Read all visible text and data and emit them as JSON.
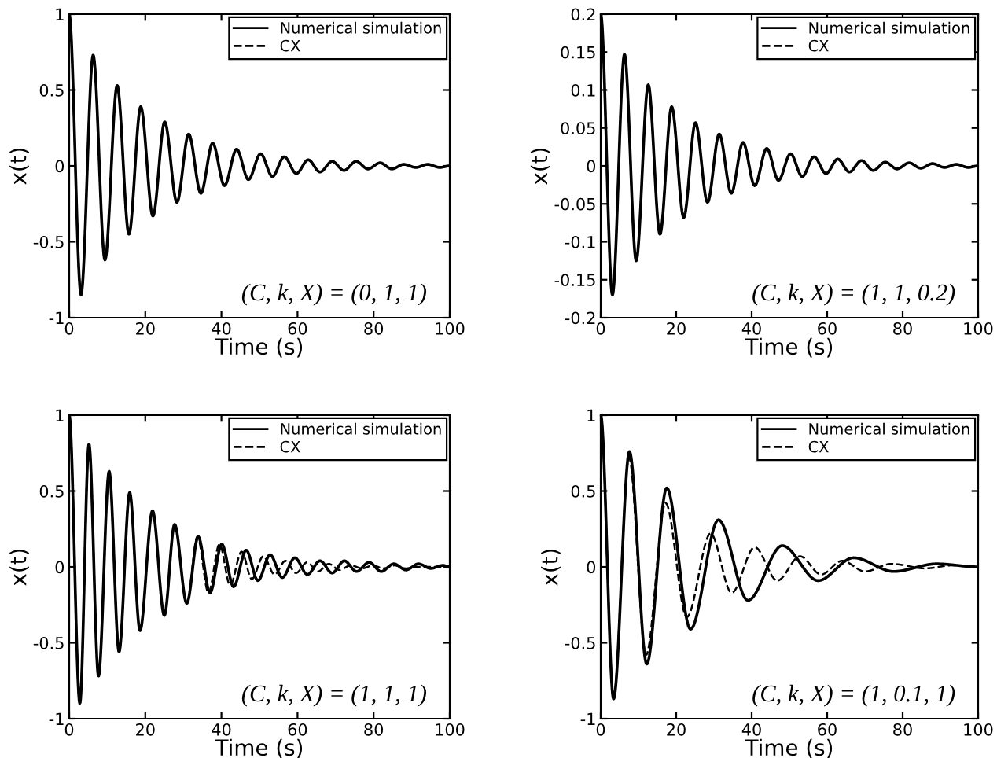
{
  "chart_data": [
    {
      "type": "line",
      "xlabel": "Time (s)",
      "ylabel": "x(t)",
      "xlim": [
        0,
        100
      ],
      "xticks": [
        0,
        20,
        40,
        60,
        80,
        100
      ],
      "ylim": [
        -1,
        1
      ],
      "yticks": [
        -1,
        -0.5,
        0,
        0.5,
        1
      ],
      "legend": "top right",
      "grid": false,
      "annotations": [
        "(C, k, X) = (0, 1, 1)"
      ],
      "series": [
        {
          "name": "Numerical simulation",
          "color": "#000000",
          "line_style": "solid",
          "x": [
            0,
            3.1,
            6.3,
            9.4,
            12.6,
            15.7,
            18.8,
            22,
            25.1,
            28.3,
            31.4,
            34.6,
            37.7,
            40.8,
            44,
            47.1,
            50.3,
            53.4,
            56.5,
            59.7,
            62.8,
            65.9,
            69.1,
            72.2,
            75.4,
            78.5,
            81.7,
            84.8,
            87.9,
            91.1,
            94.2,
            97.4,
            100
          ],
          "values": [
            1,
            -0.85,
            0.73,
            -0.62,
            0.53,
            -0.45,
            0.39,
            -0.33,
            0.29,
            -0.24,
            0.21,
            -0.18,
            0.15,
            -0.13,
            0.11,
            -0.09,
            0.08,
            -0.07,
            0.06,
            -0.05,
            0.04,
            -0.04,
            0.03,
            -0.03,
            0.03,
            -0.02,
            0.02,
            -0.02,
            0.01,
            -0.01,
            0.01,
            -0.01,
            0
          ]
        },
        {
          "name": "CX",
          "color": "#000000",
          "line_style": "dashed",
          "x": [
            0,
            3.1,
            6.3,
            9.4,
            12.6,
            15.7,
            18.8,
            22,
            25.1,
            28.3,
            31.4,
            34.6,
            37.7,
            40.8,
            44,
            47.1,
            50.3,
            53.4,
            56.5,
            59.7,
            62.8,
            65.9,
            69.1,
            72.2,
            75.4,
            78.5,
            81.7,
            84.8,
            87.9,
            91.1,
            94.2,
            97.4,
            100
          ],
          "values": [
            1,
            -0.85,
            0.73,
            -0.62,
            0.53,
            -0.45,
            0.39,
            -0.33,
            0.29,
            -0.24,
            0.21,
            -0.18,
            0.15,
            -0.13,
            0.11,
            -0.09,
            0.08,
            -0.07,
            0.06,
            -0.05,
            0.04,
            -0.04,
            0.03,
            -0.03,
            0.03,
            -0.02,
            0.02,
            -0.02,
            0.01,
            -0.01,
            0.01,
            -0.01,
            0
          ]
        }
      ]
    },
    {
      "type": "line",
      "xlabel": "Time (s)",
      "ylabel": "x(t)",
      "xlim": [
        0,
        100
      ],
      "xticks": [
        0,
        20,
        40,
        60,
        80,
        100
      ],
      "ylim": [
        -0.2,
        0.2
      ],
      "yticks": [
        -0.2,
        -0.15,
        -0.1,
        -0.05,
        0,
        0.05,
        0.1,
        0.15,
        0.2
      ],
      "legend": "top right",
      "grid": false,
      "annotations": [
        "(C, k, X) = (1, 1, 0.2)"
      ],
      "series": [
        {
          "name": "Numerical simulation",
          "color": "#000000",
          "line_style": "solid",
          "x": [
            0,
            3.1,
            6.3,
            9.4,
            12.6,
            15.7,
            18.8,
            22,
            25.1,
            28.3,
            31.4,
            34.6,
            37.7,
            40.8,
            44,
            47.1,
            50.3,
            53.4,
            56.5,
            59.7,
            62.8,
            65.9,
            69.1,
            72.2,
            75.4,
            78.5,
            81.7,
            84.8,
            87.9,
            91.1,
            94.2,
            97.4,
            100
          ],
          "values": [
            0.2,
            -0.17,
            0.147,
            -0.125,
            0.107,
            -0.09,
            0.078,
            -0.068,
            0.057,
            -0.048,
            0.042,
            -0.036,
            0.031,
            -0.026,
            0.023,
            -0.019,
            0.016,
            -0.014,
            0.012,
            -0.01,
            0.009,
            -0.008,
            0.007,
            -0.006,
            0.005,
            -0.004,
            0.004,
            -0.003,
            0.003,
            -0.002,
            0.002,
            -0.002,
            0
          ]
        },
        {
          "name": "CX",
          "color": "#000000",
          "line_style": "dashed",
          "x": [
            0,
            3.1,
            6.3,
            9.4,
            12.6,
            15.7,
            18.8,
            22,
            25.1,
            28.3,
            31.4,
            34.6,
            37.7,
            40.8,
            44,
            47.1,
            50.3,
            53.4,
            56.5,
            59.7,
            62.8,
            65.9,
            69.1,
            72.2,
            75.4,
            78.5,
            81.7,
            84.8,
            87.9,
            91.1,
            94.2,
            97.4,
            100
          ],
          "values": [
            0.2,
            -0.17,
            0.147,
            -0.125,
            0.107,
            -0.09,
            0.078,
            -0.068,
            0.057,
            -0.048,
            0.042,
            -0.036,
            0.031,
            -0.026,
            0.023,
            -0.019,
            0.016,
            -0.014,
            0.012,
            -0.01,
            0.009,
            -0.008,
            0.007,
            -0.006,
            0.005,
            -0.004,
            0.004,
            -0.003,
            0.003,
            -0.002,
            0.002,
            -0.002,
            0
          ]
        }
      ]
    },
    {
      "type": "line",
      "xlabel": "Time (s)",
      "ylabel": "x(t)",
      "xlim": [
        0,
        100
      ],
      "xticks": [
        0,
        20,
        40,
        60,
        80,
        100
      ],
      "ylim": [
        -1,
        1
      ],
      "yticks": [
        -1,
        -0.5,
        0,
        0.5,
        1
      ],
      "legend": "top right",
      "grid": false,
      "annotations": [
        "(C, k, X) = (1, 1, 1)"
      ],
      "series": [
        {
          "name": "Numerical simulation",
          "color": "#000000",
          "line_style": "solid",
          "x": [
            0,
            2.8,
            5.2,
            7.7,
            10.5,
            13.1,
            15.9,
            18.6,
            21.9,
            25,
            27.7,
            30.9,
            33.9,
            37,
            40.1,
            43.2,
            46.5,
            49.6,
            52.8,
            56,
            59.3,
            62.6,
            65.9,
            69.1,
            72.3,
            75.5,
            78.8,
            82,
            85.3,
            88.5,
            91.8,
            95,
            98.2,
            100
          ],
          "values": [
            1,
            -0.9,
            0.81,
            -0.72,
            0.63,
            -0.56,
            0.49,
            -0.42,
            0.37,
            -0.32,
            0.28,
            -0.24,
            0.2,
            -0.17,
            0.15,
            -0.13,
            0.11,
            -0.09,
            0.08,
            -0.07,
            0.06,
            -0.05,
            0.04,
            -0.04,
            0.04,
            -0.03,
            0.03,
            -0.03,
            0.02,
            -0.02,
            0.02,
            -0.01,
            0.01,
            0
          ]
        },
        {
          "name": "CX",
          "color": "#000000",
          "line_style": "dashed",
          "x": [
            0,
            2.8,
            5.2,
            7.7,
            10.5,
            13.1,
            15.9,
            18.6,
            21.9,
            25,
            27.7,
            30.9,
            33.7,
            36.6,
            39.5,
            42.3,
            45.3,
            48,
            51,
            54,
            56.8,
            59.6,
            62.5,
            65.4,
            68.2,
            71,
            74,
            77,
            79.8,
            82.6,
            85.5,
            88.4,
            91.2,
            94,
            97,
            100
          ],
          "values": [
            1,
            -0.9,
            0.81,
            -0.72,
            0.63,
            -0.56,
            0.49,
            -0.42,
            0.37,
            -0.32,
            0.28,
            -0.24,
            0.2,
            -0.17,
            0.15,
            -0.12,
            0.1,
            -0.08,
            0.07,
            -0.05,
            0.04,
            -0.04,
            0.03,
            -0.03,
            0.02,
            -0.02,
            0.01,
            -0.01,
            0.01,
            -0.01,
            0.01,
            -0.01,
            0,
            0,
            0,
            0
          ]
        }
      ]
    },
    {
      "type": "line",
      "xlabel": "Time (s)",
      "ylabel": "x(t)",
      "xlim": [
        0,
        100
      ],
      "xticks": [
        0,
        20,
        40,
        60,
        80,
        100
      ],
      "ylim": [
        -1,
        1
      ],
      "yticks": [
        -1,
        -0.5,
        0,
        0.5,
        1
      ],
      "legend": "top right",
      "grid": false,
      "annotations": [
        "(C, k, X) = (1, 0.1, 1)"
      ],
      "series": [
        {
          "name": "Numerical simulation",
          "color": "#000000",
          "line_style": "solid",
          "x": [
            0,
            3.4,
            7.6,
            12.2,
            17.5,
            23.8,
            31.2,
            39,
            48.1,
            57.6,
            67,
            77.6,
            89,
            100
          ],
          "values": [
            1,
            -0.87,
            0.76,
            -0.64,
            0.52,
            -0.41,
            0.31,
            -0.22,
            0.14,
            -0.09,
            0.06,
            -0.03,
            0.02,
            0
          ]
        },
        {
          "name": "CX",
          "color": "#000000",
          "line_style": "dashed",
          "x": [
            0,
            3.4,
            7.5,
            12,
            17.2,
            22.8,
            29.1,
            34.7,
            40.8,
            46.8,
            52.8,
            58.4,
            64,
            70,
            77,
            86,
            93,
            100
          ],
          "values": [
            1,
            -0.86,
            0.72,
            -0.58,
            0.42,
            -0.33,
            0.22,
            -0.17,
            0.13,
            -0.09,
            0.07,
            -0.05,
            0.04,
            -0.03,
            0.02,
            -0.01,
            0.01,
            0
          ]
        }
      ]
    }
  ]
}
